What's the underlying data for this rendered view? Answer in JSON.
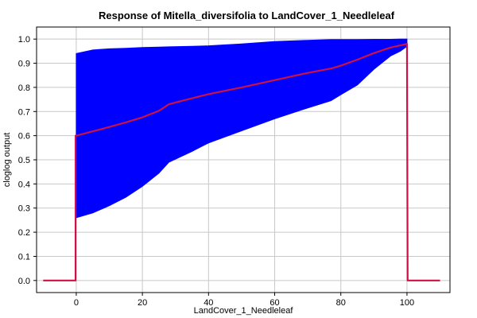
{
  "chart_data": {
    "type": "line",
    "title": "Response of Mitella_diversifolia to LandCover_1_Needleleaf",
    "xlabel": "LandCover_1_Needleleaf",
    "ylabel": "cloglog output",
    "xlim": [
      -12,
      113
    ],
    "ylim": [
      -0.05,
      1.05
    ],
    "xticks": [
      0,
      20,
      40,
      60,
      80,
      100
    ],
    "yticks": [
      0.0,
      0.1,
      0.2,
      0.3,
      0.4,
      0.5,
      0.6,
      0.7,
      0.8,
      0.9,
      1.0
    ],
    "grid": true,
    "colors": {
      "band": "#0000ff",
      "line": "#cc1144"
    },
    "series": [
      {
        "kind": "line",
        "x": [
          -10,
          -0.2,
          -0.2,
          0,
          5,
          10,
          15,
          20,
          25,
          28,
          33,
          40,
          50,
          60,
          70,
          77,
          80,
          85,
          90,
          95,
          100,
          100.2,
          110
        ],
        "y": [
          0.0,
          0.0,
          0.6,
          0.6,
          0.618,
          0.636,
          0.655,
          0.676,
          0.703,
          0.73,
          0.748,
          0.772,
          0.8,
          0.83,
          0.86,
          0.878,
          0.89,
          0.915,
          0.942,
          0.965,
          0.98,
          0.0,
          0.0
        ]
      },
      {
        "kind": "band",
        "x": [
          0,
          5,
          10,
          15,
          20,
          25,
          28,
          35,
          40,
          50,
          60,
          70,
          77,
          80,
          85,
          90,
          95,
          98,
          100
        ],
        "lower": [
          0.26,
          0.28,
          0.31,
          0.345,
          0.39,
          0.445,
          0.49,
          0.535,
          0.57,
          0.62,
          0.67,
          0.715,
          0.745,
          0.77,
          0.81,
          0.875,
          0.93,
          0.95,
          0.97
        ],
        "upper": [
          0.94,
          0.955,
          0.96,
          0.962,
          0.965,
          0.967,
          0.968,
          0.97,
          0.972,
          0.98,
          0.99,
          0.995,
          0.998,
          0.998,
          0.998,
          0.999,
          0.999,
          1.0,
          1.0
        ]
      }
    ]
  }
}
